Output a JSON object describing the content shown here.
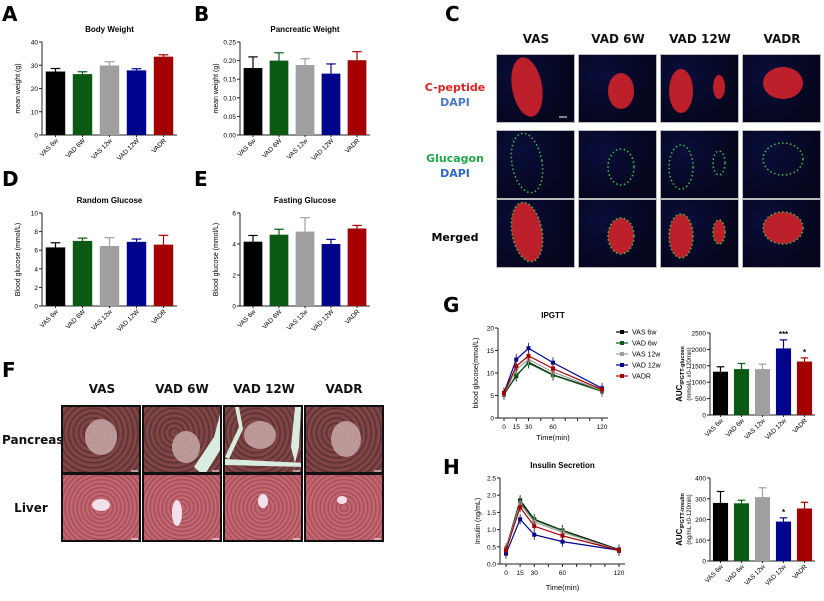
{
  "panels": {
    "A": "A",
    "B": "B",
    "C": "C",
    "D": "D",
    "E": "E",
    "F": "F",
    "G": "G",
    "H": "H"
  },
  "groups": [
    "VAS 6w",
    "VAD 6W",
    "VAS 12w",
    "VAD 12W",
    "VADR"
  ],
  "group_colors": [
    "#000000",
    "#0a5a14",
    "#a0a0a0",
    "#00048c",
    "#a40000"
  ],
  "panel_C": {
    "columns": [
      "VAS",
      "VAD 6W",
      "VAD 12W",
      "VADR"
    ],
    "rows": [
      {
        "line1": "C-peptide",
        "line2": "DAPI",
        "color1": "#e0201c",
        "color2": "#4a78c8"
      },
      {
        "line1": "Glucagon",
        "line2": "DAPI",
        "color1": "#1ea84a",
        "color2": "#2a68c0"
      },
      {
        "line1": "Merged",
        "line2": "",
        "color1": "#000000",
        "color2": "#000000"
      }
    ]
  },
  "panel_F": {
    "columns": [
      "VAS",
      "VAD 6W",
      "VAD 12W",
      "VADR"
    ],
    "rows": [
      "Pancreas",
      "Liver"
    ]
  },
  "chart_data": [
    {
      "id": "A",
      "type": "bar",
      "title": "Body Weight",
      "categories": [
        "VAS 6w",
        "VAD 6W",
        "VAS 12w",
        "VAD 12W",
        "VADR"
      ],
      "values": [
        27.3,
        26.2,
        29.9,
        27.8,
        33.7
      ],
      "errors": [
        1.3,
        1.0,
        1.6,
        0.7,
        0.8
      ],
      "xlabel": "",
      "ylabel": "mean weight (g)",
      "ylim": [
        0,
        40
      ],
      "yticks": [
        "0",
        "10",
        "20",
        "30",
        "40"
      ]
    },
    {
      "id": "B",
      "type": "bar",
      "title": "Pancreatic Weight",
      "categories": [
        "VAS 6w",
        "VAD 6W",
        "VAS 12w",
        "VAD 12W",
        "VADR"
      ],
      "values": [
        0.18,
        0.2,
        0.188,
        0.165,
        0.201
      ],
      "errors": [
        0.03,
        0.021,
        0.017,
        0.026,
        0.023
      ],
      "xlabel": "",
      "ylabel": "mean weight (g)",
      "ylim": [
        0,
        0.25
      ],
      "yticks": [
        "0.00",
        "0.05",
        "0.10",
        "0.15",
        "0.20",
        "0.25"
      ]
    },
    {
      "id": "D",
      "type": "bar",
      "title": "Random Glucose",
      "categories": [
        "VAS 6w",
        "VAD 6W",
        "VAS 12w",
        "VAD 12W",
        "VADR"
      ],
      "values": [
        6.3,
        7.0,
        6.45,
        6.9,
        6.6
      ],
      "errors": [
        0.5,
        0.3,
        0.9,
        0.3,
        1.0
      ],
      "xlabel": "",
      "ylabel": "Blood glucose (mmol/L)",
      "ylim": [
        0,
        10
      ],
      "yticks": [
        "0",
        "2",
        "4",
        "6",
        "8",
        "10"
      ]
    },
    {
      "id": "E",
      "type": "bar",
      "title": "Fasting Glucose",
      "categories": [
        "VAS 6w",
        "VAD 6W",
        "VAS 12w",
        "VAD 12W",
        "VADR"
      ],
      "values": [
        4.15,
        4.6,
        4.8,
        4.0,
        5.0
      ],
      "errors": [
        0.4,
        0.35,
        0.9,
        0.3,
        0.2
      ],
      "xlabel": "",
      "ylabel": "Blood glucose (mmol/L)",
      "ylim": [
        0,
        6
      ],
      "yticks": [
        "0",
        "2",
        "4",
        "6"
      ]
    },
    {
      "id": "G-line",
      "type": "line",
      "title": "IPGTT",
      "x": [
        0,
        15,
        30,
        60,
        120
      ],
      "series": [
        {
          "name": "VAS 6w",
          "values": [
            5.3,
            9.3,
            12.4,
            9.6,
            6.0
          ],
          "color": "#000000"
        },
        {
          "name": "VAD 6w",
          "values": [
            5.2,
            9.5,
            12.2,
            9.5,
            5.9
          ],
          "color": "#0a5a14"
        },
        {
          "name": "VAS 12w",
          "values": [
            5.4,
            10.8,
            13.0,
            10.2,
            6.1
          ],
          "color": "#a0a0a0"
        },
        {
          "name": "VAD 12w",
          "values": [
            5.6,
            13.0,
            15.5,
            12.3,
            6.6
          ],
          "color": "#00048c"
        },
        {
          "name": "VADR",
          "values": [
            5.5,
            11.5,
            13.8,
            11.0,
            6.3
          ],
          "color": "#a40000"
        }
      ],
      "xlabel": "Time(min)",
      "ylabel": "blood glucose(mmol/L)",
      "ylim": [
        0,
        20
      ],
      "yticks": [
        "0",
        "5",
        "10",
        "15",
        "20"
      ],
      "xticks": [
        "0",
        "15",
        "30",
        "60",
        "120"
      ],
      "legend_position": "right"
    },
    {
      "id": "G-auc",
      "type": "bar",
      "title": "",
      "categories": [
        "VAS 6w",
        "VAD 6w",
        "VAS 12w",
        "VAD 12w",
        "VADR"
      ],
      "values": [
        1320,
        1400,
        1400,
        2030,
        1630
      ],
      "errors": [
        150,
        170,
        150,
        260,
        110
      ],
      "annotations": [
        "",
        "",
        "",
        "***",
        "*"
      ],
      "xlabel": "",
      "ylabel": "AUC IPGTT-glucose (mmol/L x0-120min)",
      "ylabel_main": "AUC",
      "ylabel_sub": "IPGTT-glucose",
      "ylabel_line2": "(mmol/L x0-120min)",
      "ylim": [
        0,
        2500
      ],
      "yticks": [
        "0",
        "500",
        "1000",
        "1500",
        "2000",
        "2500"
      ]
    },
    {
      "id": "H-line",
      "type": "line",
      "title": "Insulin Secretion",
      "x": [
        0,
        15,
        30,
        60,
        120
      ],
      "series": [
        {
          "name": "VAS 6w",
          "values": [
            0.45,
            1.85,
            1.3,
            0.98,
            0.42
          ],
          "color": "#000000"
        },
        {
          "name": "VAD 6w",
          "values": [
            0.42,
            1.8,
            1.28,
            0.97,
            0.38
          ],
          "color": "#0a5a14"
        },
        {
          "name": "VAS 12w",
          "values": [
            0.43,
            1.75,
            1.22,
            0.92,
            0.4
          ],
          "color": "#a0a0a0"
        },
        {
          "name": "VAD 12w",
          "values": [
            0.3,
            1.3,
            0.85,
            0.65,
            0.4
          ],
          "color": "#00048c"
        },
        {
          "name": "VADR",
          "values": [
            0.4,
            1.65,
            1.1,
            0.82,
            0.4
          ],
          "color": "#a40000"
        }
      ],
      "xlabel": "Time(min)",
      "ylabel": "Insulin (ng/mL)",
      "ylim": [
        0,
        2.5
      ],
      "yticks": [
        "0.0",
        "0.5",
        "1.0",
        "1.5",
        "2.0",
        "2.5"
      ],
      "xticks": [
        "0",
        "15",
        "30",
        "60",
        "120"
      ]
    },
    {
      "id": "H-auc",
      "type": "bar",
      "title": "",
      "categories": [
        "VAS 6w",
        "VAD 6w",
        "VAS 12w",
        "VAD 12w",
        "VADR"
      ],
      "values": [
        280,
        278,
        308,
        190,
        253
      ],
      "errors": [
        55,
        15,
        45,
        18,
        30
      ],
      "annotations": [
        "",
        "",
        "",
        "*",
        ""
      ],
      "xlabel": "",
      "ylabel": "AUC IPGTT-insulin (ng/mL x0-120min)",
      "ylabel_main": "AUC",
      "ylabel_sub": "IPGTT-insulin",
      "ylabel_line2": "(ng/mL x0-120min)",
      "ylim": [
        0,
        400
      ],
      "yticks": [
        "0",
        "100",
        "200",
        "300",
        "400"
      ]
    }
  ]
}
